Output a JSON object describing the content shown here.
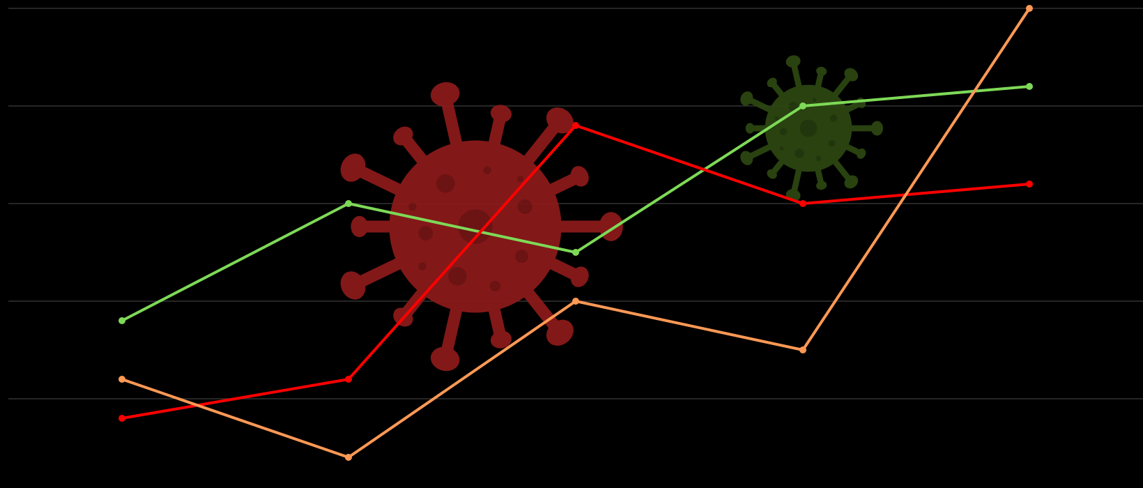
{
  "chart_data": {
    "type": "line",
    "x": [
      1,
      2,
      3,
      4,
      5
    ],
    "ylim": [
      -0.8,
      4.2
    ],
    "yticks": [
      0,
      1,
      2,
      3,
      4
    ],
    "grid": true,
    "legend": "none",
    "background": "#000000",
    "gridColor": "#333333",
    "series": [
      {
        "color": "#7ed957",
        "values": [
          0.8,
          2.0,
          1.5,
          3.0,
          3.2
        ]
      },
      {
        "color": "#ff0000",
        "values": [
          -0.2,
          0.2,
          2.8,
          2.0,
          2.2
        ]
      },
      {
        "color": "#ff9955",
        "values": [
          0.2,
          -0.6,
          1.0,
          0.5,
          4.0
        ]
      }
    ],
    "decorations": [
      {
        "name": "virus-icon",
        "color": "#8b1a1a"
      },
      {
        "name": "virus-icon",
        "color": "#2e4a12"
      }
    ]
  }
}
